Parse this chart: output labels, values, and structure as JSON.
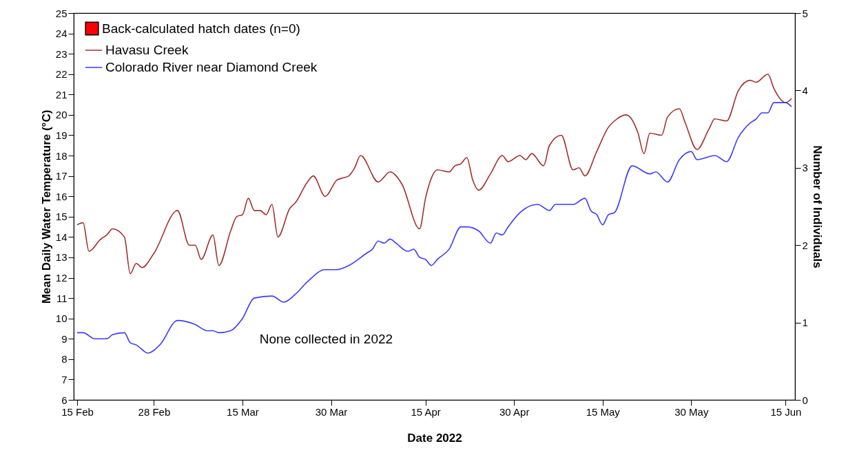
{
  "chart_data": {
    "type": "line",
    "xlabel": "Date 2022",
    "ylabel": "Mean Daily Water Temperature (°C)",
    "y2label": "Number of Individuals",
    "xlim": [
      "2022-02-15",
      "2022-06-16"
    ],
    "xticks": [
      {
        "value": "2022-02-15",
        "label": "15 Feb"
      },
      {
        "value": "2022-02-28",
        "label": "28 Feb"
      },
      {
        "value": "2022-03-15",
        "label": "15 Mar"
      },
      {
        "value": "2022-03-30",
        "label": "30 Mar"
      },
      {
        "value": "2022-04-15",
        "label": "15 Apr"
      },
      {
        "value": "2022-04-30",
        "label": "30 Apr"
      },
      {
        "value": "2022-05-15",
        "label": "15 May"
      },
      {
        "value": "2022-05-30",
        "label": "30 May"
      },
      {
        "value": "2022-06-15",
        "label": "15 Jun"
      }
    ],
    "ylim": [
      6,
      25
    ],
    "yticks": [
      6,
      7,
      8,
      9,
      10,
      11,
      12,
      13,
      14,
      15,
      16,
      17,
      18,
      19,
      20,
      21,
      22,
      23,
      24,
      25
    ],
    "y2lim": [
      0,
      5
    ],
    "y2ticks": [
      0,
      1,
      2,
      3,
      4,
      5
    ],
    "legend": "top left",
    "grid": false,
    "annotations": [
      "None collected in 2022"
    ],
    "series": [
      {
        "name": "Back-calculated hatch dates (n=0)",
        "type": "bar",
        "axis": "y2",
        "color": "#ff0000"
      },
      {
        "name": "Havasu Creek",
        "color": "#a0302c",
        "x": [
          "2022-02-15",
          "2022-02-16",
          "2022-02-17",
          "2022-02-19",
          "2022-02-20",
          "2022-02-21",
          "2022-02-23",
          "2022-02-24",
          "2022-02-25",
          "2022-02-26",
          "2022-02-28",
          "2022-03-04",
          "2022-03-06",
          "2022-03-07",
          "2022-03-08",
          "2022-03-10",
          "2022-03-11",
          "2022-03-13",
          "2022-03-14",
          "2022-03-15",
          "2022-03-16",
          "2022-03-17",
          "2022-03-18",
          "2022-03-19",
          "2022-03-20",
          "2022-03-21",
          "2022-03-23",
          "2022-03-24",
          "2022-03-26",
          "2022-03-27",
          "2022-03-29",
          "2022-03-31",
          "2022-04-01",
          "2022-04-02",
          "2022-04-03",
          "2022-04-04",
          "2022-04-07",
          "2022-04-09",
          "2022-04-11",
          "2022-04-14",
          "2022-04-15",
          "2022-04-16",
          "2022-04-17",
          "2022-04-19",
          "2022-04-20",
          "2022-04-21",
          "2022-04-22",
          "2022-04-23",
          "2022-04-24",
          "2022-04-26",
          "2022-04-28",
          "2022-04-29",
          "2022-05-01",
          "2022-05-02",
          "2022-05-03",
          "2022-05-05",
          "2022-05-06",
          "2022-05-08",
          "2022-05-10",
          "2022-05-11",
          "2022-05-12",
          "2022-05-14",
          "2022-05-16",
          "2022-05-17",
          "2022-05-19",
          "2022-05-21",
          "2022-05-22",
          "2022-05-23",
          "2022-05-25",
          "2022-05-26",
          "2022-05-28",
          "2022-05-29",
          "2022-05-31",
          "2022-06-02",
          "2022-06-03",
          "2022-06-05",
          "2022-06-07",
          "2022-06-09",
          "2022-06-10",
          "2022-06-12",
          "2022-06-13",
          "2022-06-15",
          "2022-06-16"
        ],
        "values": [
          14.6,
          14.7,
          13.3,
          13.9,
          14.1,
          14.4,
          14.0,
          12.2,
          12.7,
          12.5,
          13.2,
          15.3,
          13.6,
          13.6,
          12.9,
          14.1,
          12.6,
          14.3,
          15.0,
          15.1,
          15.9,
          15.3,
          15.3,
          15.1,
          15.6,
          14.0,
          15.4,
          15.7,
          16.7,
          17.0,
          16.0,
          16.8,
          16.9,
          17.0,
          17.4,
          18.0,
          16.7,
          17.2,
          16.6,
          14.4,
          15.9,
          16.9,
          17.3,
          17.2,
          17.5,
          17.6,
          17.9,
          16.8,
          16.3,
          17.1,
          18.0,
          17.7,
          18.0,
          17.8,
          18.1,
          17.5,
          18.5,
          19.0,
          17.3,
          17.4,
          17.0,
          18.2,
          19.4,
          19.7,
          20.0,
          19.1,
          18.1,
          19.1,
          19.0,
          19.9,
          20.3,
          19.6,
          18.3,
          19.3,
          19.8,
          19.7,
          21.2,
          21.7,
          21.6,
          22.0,
          21.3,
          20.6,
          20.8
        ]
      },
      {
        "name": "Colorado River near Diamond Creek",
        "color": "#3a3aff",
        "x": [
          "2022-02-15",
          "2022-02-16",
          "2022-02-18",
          "2022-02-20",
          "2022-02-21",
          "2022-02-23",
          "2022-02-24",
          "2022-02-25",
          "2022-02-27",
          "2022-03-01",
          "2022-03-04",
          "2022-03-07",
          "2022-03-09",
          "2022-03-10",
          "2022-03-11",
          "2022-03-13",
          "2022-03-15",
          "2022-03-17",
          "2022-03-20",
          "2022-03-22",
          "2022-03-24",
          "2022-03-26",
          "2022-03-29",
          "2022-03-31",
          "2022-04-02",
          "2022-04-05",
          "2022-04-06",
          "2022-04-07",
          "2022-04-08",
          "2022-04-09",
          "2022-04-10",
          "2022-04-12",
          "2022-04-13",
          "2022-04-14",
          "2022-04-15",
          "2022-04-16",
          "2022-04-17",
          "2022-04-19",
          "2022-04-21",
          "2022-04-22",
          "2022-04-24",
          "2022-04-26",
          "2022-04-27",
          "2022-04-28",
          "2022-04-29",
          "2022-05-01",
          "2022-05-04",
          "2022-05-06",
          "2022-05-07",
          "2022-05-10",
          "2022-05-12",
          "2022-05-13",
          "2022-05-14",
          "2022-05-15",
          "2022-05-16",
          "2022-05-17",
          "2022-05-20",
          "2022-05-23",
          "2022-05-24",
          "2022-05-26",
          "2022-05-28",
          "2022-05-30",
          "2022-05-31",
          "2022-06-03",
          "2022-06-05",
          "2022-06-07",
          "2022-06-09",
          "2022-06-10",
          "2022-06-11",
          "2022-06-12",
          "2022-06-13",
          "2022-06-15",
          "2022-06-16"
        ],
        "values": [
          9.3,
          9.3,
          9.0,
          9.0,
          9.2,
          9.3,
          8.8,
          8.7,
          8.3,
          8.7,
          9.9,
          9.7,
          9.4,
          9.4,
          9.3,
          9.4,
          10.0,
          11.0,
          11.1,
          10.8,
          11.2,
          11.8,
          12.4,
          12.4,
          12.6,
          13.2,
          13.4,
          13.8,
          13.7,
          13.9,
          13.7,
          13.3,
          13.4,
          13.0,
          12.9,
          12.6,
          12.9,
          13.4,
          14.5,
          14.5,
          14.3,
          13.7,
          14.2,
          14.1,
          14.5,
          15.2,
          15.6,
          15.3,
          15.6,
          15.6,
          15.9,
          15.3,
          15.1,
          14.6,
          15.1,
          15.2,
          17.5,
          17.1,
          17.2,
          16.7,
          17.8,
          18.2,
          17.8,
          18.0,
          17.7,
          18.9,
          19.6,
          19.8,
          20.1,
          20.1,
          20.6,
          20.6,
          20.4
        ]
      }
    ]
  }
}
